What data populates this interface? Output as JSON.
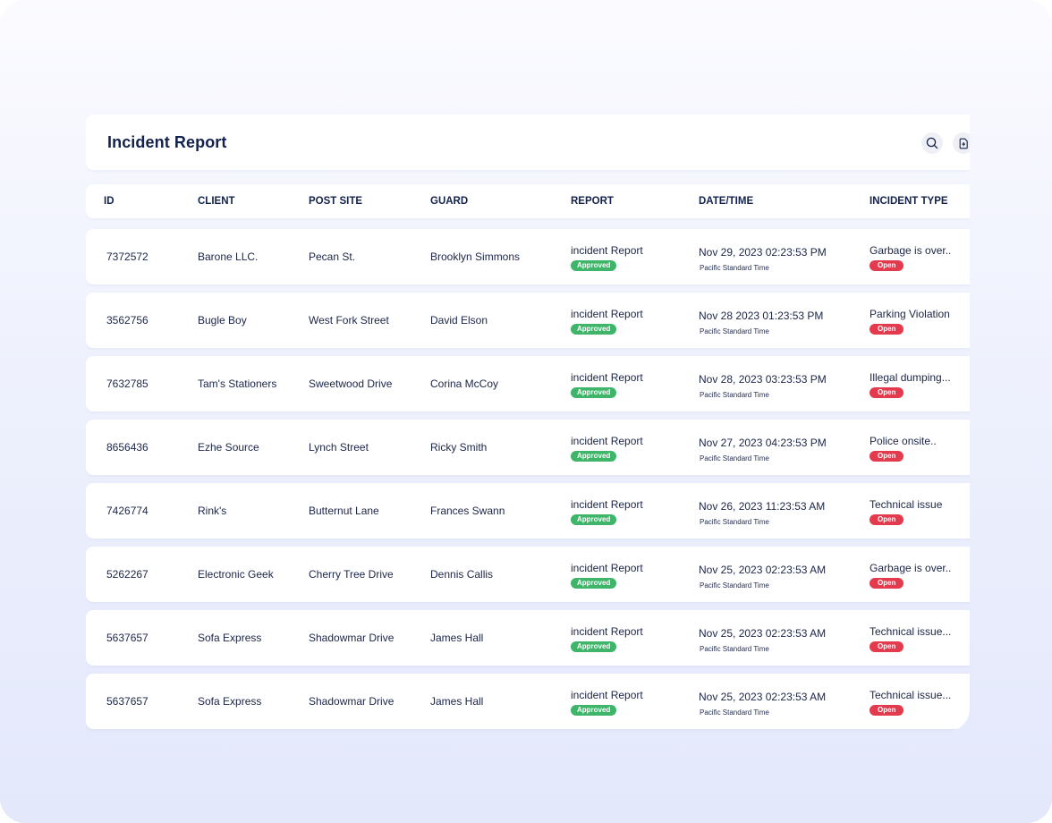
{
  "header": {
    "title": "Incident Report",
    "search_icon": "search-icon",
    "export_icon": "file-export-icon"
  },
  "columns": [
    "ID",
    "CLIENT",
    "POST SITE",
    "GUARD",
    "REPORT",
    "DATE/TIME",
    "INCIDENT TYPE"
  ],
  "rows": [
    {
      "id": "7372572",
      "client": "Barone LLC.",
      "post_site": "Pecan St.",
      "guard": "Brooklyn Simmons",
      "report": "incident Report",
      "report_status": "Approved",
      "datetime": "Nov 29, 2023 02:23:53 PM",
      "timezone": "Pacific Standard Time",
      "incident": "Garbage is over..",
      "incident_status": "Open"
    },
    {
      "id": "3562756",
      "client": "Bugle Boy",
      "post_site": "West Fork Street",
      "guard": "David Elson",
      "report": "incident Report",
      "report_status": "Approved",
      "datetime": "Nov 28 2023 01:23:53 PM",
      "timezone": "Pacific Standard Time",
      "incident": "Parking Violation",
      "incident_status": "Open"
    },
    {
      "id": "7632785",
      "client": "Tam's Stationers",
      "post_site": "Sweetwood Drive",
      "guard": "Corina McCoy",
      "report": "incident Report",
      "report_status": "Approved",
      "datetime": "Nov 28, 2023 03:23:53 PM",
      "timezone": "Pacific Standard Time",
      "incident": "Illegal dumping...",
      "incident_status": "Open"
    },
    {
      "id": "8656436",
      "client": "Ezhe Source",
      "post_site": "Lynch Street",
      "guard": "Ricky Smith",
      "report": "incident Report",
      "report_status": "Approved",
      "datetime": "Nov 27, 2023 04:23:53 PM",
      "timezone": "Pacific Standard Time",
      "incident": "Police onsite..",
      "incident_status": "Open"
    },
    {
      "id": "7426774",
      "client": "Rink's",
      "post_site": "Butternut Lane",
      "guard": "Frances Swann",
      "report": "incident Report",
      "report_status": "Approved",
      "datetime": "Nov 26, 2023 11:23:53 AM",
      "timezone": "Pacific Standard Time",
      "incident": "Technical issue",
      "incident_status": "Open"
    },
    {
      "id": "5262267",
      "client": "Electronic Geek",
      "post_site": "Cherry Tree Drive",
      "guard": "Dennis Callis",
      "report": "incident Report",
      "report_status": "Approved",
      "datetime": "Nov 25, 2023 02:23:53 AM",
      "timezone": "Pacific Standard Time",
      "incident": "Garbage is over..",
      "incident_status": "Open"
    },
    {
      "id": "5637657",
      "client": "Sofa Express",
      "post_site": "Shadowmar Drive",
      "guard": "James Hall",
      "report": "incident Report",
      "report_status": "Approved",
      "datetime": "Nov 25, 2023 02:23:53 AM",
      "timezone": "Pacific Standard Time",
      "incident": "Technical issue...",
      "incident_status": "Open"
    },
    {
      "id": "5637657",
      "client": "Sofa Express",
      "post_site": "Shadowmar Drive",
      "guard": "James Hall",
      "report": "incident Report",
      "report_status": "Approved",
      "datetime": "Nov 25, 2023 02:23:53 AM",
      "timezone": "Pacific Standard Time",
      "incident": "Technical issue...",
      "incident_status": "Open"
    }
  ],
  "colors": {
    "title": "#13224c",
    "approved": "#3fb56a",
    "open": "#e43a4e"
  }
}
